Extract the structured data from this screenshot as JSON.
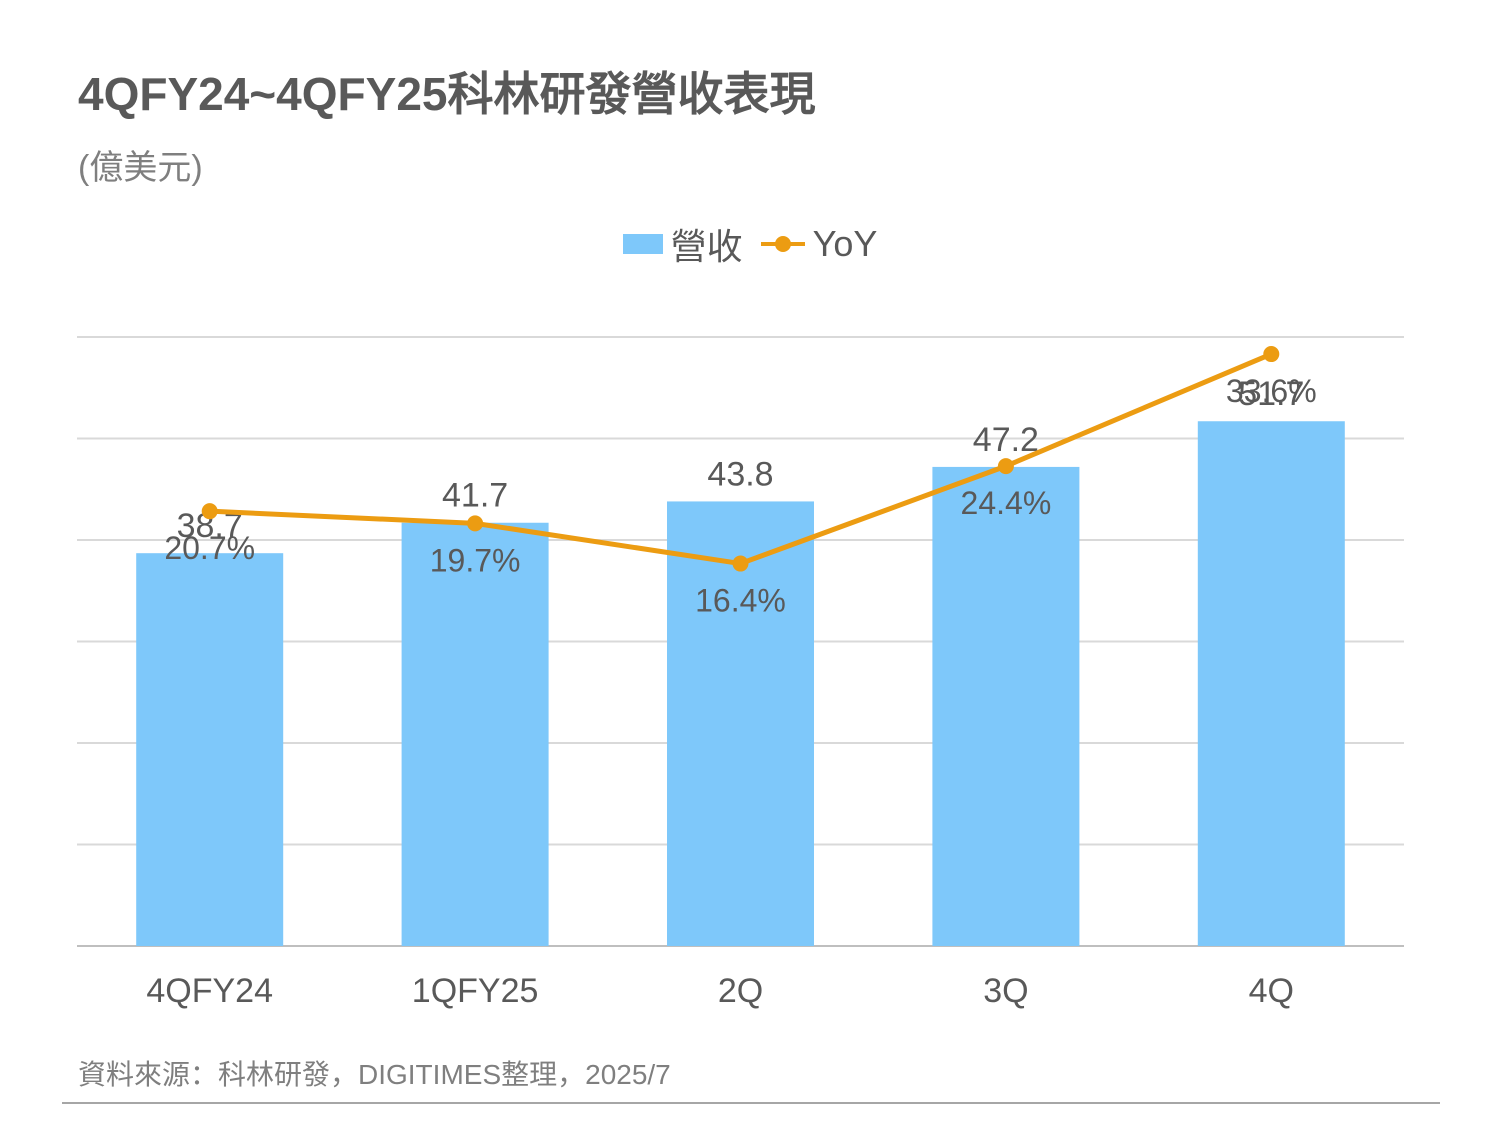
{
  "title": "4QFY24~4QFY25科林研發營收表現",
  "subtitle": "(億美元)",
  "source": "資料來源：科林研發，DIGITIMES整理，2025/7",
  "colors": {
    "bar": "#7ec8fa",
    "line": "#ec9c12",
    "grid": "#d9d9d9",
    "text": "#595959"
  },
  "chart_data": {
    "type": "bar",
    "categories": [
      "4QFY24",
      "1QFY25",
      "2Q",
      "3Q",
      "4Q"
    ],
    "series": [
      {
        "name": "營收",
        "type": "bar",
        "values": [
          38.7,
          41.7,
          43.8,
          47.2,
          51.7
        ],
        "labels": [
          "38.7",
          "41.7",
          "43.8",
          "47.2",
          "51.7"
        ]
      },
      {
        "name": "YoY",
        "type": "line",
        "values": [
          20.7,
          19.7,
          16.4,
          24.4,
          33.6
        ],
        "labels": [
          "20.7%",
          "19.7%",
          "16.4%",
          "24.4%",
          "33.6%"
        ]
      }
    ],
    "y_revenue_range": [
      0,
      60
    ],
    "y_yoy_range": [
      -15,
      35
    ],
    "grid": true,
    "legend_position": "top-center"
  }
}
